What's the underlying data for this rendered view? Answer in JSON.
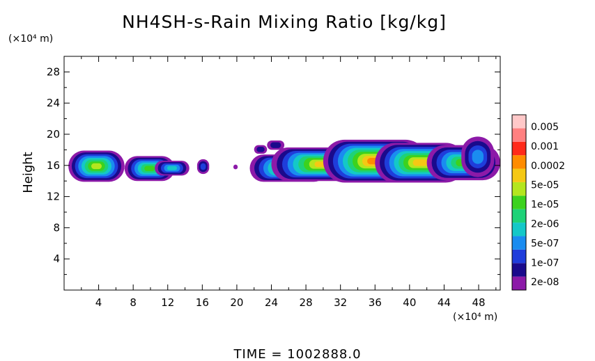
{
  "chart_data": {
    "type": "heatmap",
    "title": "NH4SH-s-Rain Mixing Ratio [kg/kg]",
    "ylabel": "Height",
    "xlabel": "",
    "x_scale_label": "(×10⁴ m)",
    "y_scale_label": "(×10⁴ m)",
    "xlim": [
      0,
      50.5
    ],
    "ylim": [
      0,
      30
    ],
    "x_ticks": [
      4,
      8,
      12,
      16,
      20,
      24,
      28,
      32,
      36,
      40,
      44,
      48
    ],
    "x_tick_labels": [
      "4",
      "8",
      "12",
      "16",
      "20",
      "24",
      "28",
      "32",
      "36",
      "40",
      "44",
      "48"
    ],
    "y_ticks": [
      4,
      8,
      12,
      16,
      20,
      24,
      28
    ],
    "y_tick_labels": [
      "4",
      "8",
      "12",
      "16",
      "20",
      "24",
      "28"
    ],
    "colorbar": {
      "labels": [
        "0.005",
        "0.001",
        "0.0002",
        "5e-05",
        "1e-05",
        "2e-06",
        "5e-07",
        "1e-07",
        "2e-08"
      ],
      "colors": [
        "#8c1aa8",
        "#1a0a8c",
        "#1f3ddb",
        "#1a8cf0",
        "#14c8c8",
        "#1ed278",
        "#3cd21e",
        "#b4e61e",
        "#f5c814",
        "#ff8c00",
        "#ff2a1a",
        "#ff8080",
        "#ffc8c8"
      ]
    },
    "grid": false,
    "legend": "right colorbar",
    "footer": "TIME = 1002888.0"
  }
}
